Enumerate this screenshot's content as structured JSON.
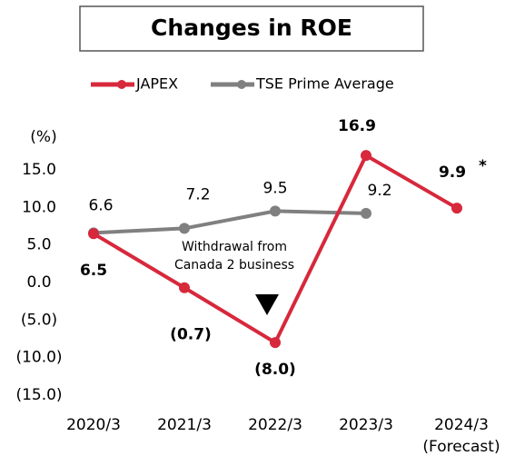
{
  "chart_data": {
    "type": "line",
    "title": "Changes in ROE",
    "y_unit": "(%)",
    "categories": [
      "2020/3",
      "2021/3",
      "2022/3",
      "2023/3",
      "2024/3"
    ],
    "x_annotation": "(Forecast)",
    "series": [
      {
        "name": "JAPEX",
        "color": "#d7283c",
        "values": [
          6.5,
          -0.7,
          -8.0,
          16.9,
          9.9
        ],
        "value_labels": [
          "6.5",
          "(0.7)",
          "(8.0)",
          "16.9",
          "9.9"
        ]
      },
      {
        "name": "TSE Prime Average",
        "color": "#808080",
        "values": [
          6.6,
          7.2,
          9.5,
          9.2,
          null
        ]
      }
    ],
    "ylim": [
      -15,
      20
    ],
    "yticks": [
      {
        "value": 15,
        "label": "15.0"
      },
      {
        "value": 10,
        "label": "10.0"
      },
      {
        "value": 5,
        "label": "5.0"
      },
      {
        "value": 0,
        "label": "0.0"
      },
      {
        "value": -5,
        "label": "(5.0)"
      },
      {
        "value": -10,
        "label": "(10.0)"
      },
      {
        "value": -15,
        "label": "(15.0)"
      }
    ],
    "negative_tick_color": "#d7283c",
    "forecast_mark": "*",
    "annotation": [
      "Withdrawal from",
      "Canada 2 business"
    ],
    "legend": "top"
  }
}
